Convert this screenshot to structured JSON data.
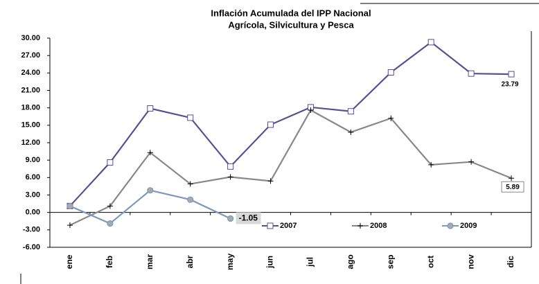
{
  "chart_data": {
    "type": "line",
    "title": "Inflación Acumulada del IPP Nacional",
    "subtitle": "Agrícola, Silvicultura y Pesca",
    "categories": [
      "ene",
      "feb",
      "mar",
      "abr",
      "may",
      "jun",
      "jul",
      "ago",
      "sep",
      "oct",
      "nov",
      "dic"
    ],
    "series": [
      {
        "name": "2007",
        "color": "#5b4d8f",
        "marker": "square",
        "values": [
          1.1,
          8.6,
          17.9,
          16.3,
          7.9,
          15.1,
          18.1,
          17.4,
          24.1,
          29.3,
          23.9,
          23.79
        ],
        "value_labels": [
          null,
          null,
          null,
          null,
          null,
          null,
          null,
          null,
          null,
          null,
          null,
          "23.79"
        ]
      },
      {
        "name": "2008",
        "color": "#888888",
        "marker": "plus",
        "values": [
          -2.2,
          1.1,
          10.3,
          4.9,
          6.1,
          5.4,
          17.6,
          13.8,
          16.2,
          8.2,
          8.7,
          5.89
        ],
        "value_labels": [
          null,
          null,
          null,
          null,
          null,
          null,
          null,
          null,
          null,
          null,
          null,
          "5.89"
        ]
      },
      {
        "name": "2009",
        "color": "#7f96c0",
        "marker": "circle",
        "values": [
          1.1,
          -1.9,
          3.8,
          2.2,
          -1.05,
          null,
          null,
          null,
          null,
          null,
          null,
          null
        ],
        "value_labels": [
          null,
          null,
          null,
          null,
          "-1.05",
          null,
          null,
          null,
          null,
          null,
          null,
          null
        ]
      }
    ],
    "ylim": [
      -6,
      30
    ],
    "yticks": [
      {
        "value": 30,
        "label": "30.00"
      },
      {
        "value": 27,
        "label": "27.00"
      },
      {
        "value": 24,
        "label": "24.00"
      },
      {
        "value": 21,
        "label": "21.00"
      },
      {
        "value": 18,
        "label": "18.00"
      },
      {
        "value": 15,
        "label": "15.00"
      },
      {
        "value": 12,
        "label": "12.00"
      },
      {
        "value": 9,
        "label": "9.00"
      },
      {
        "value": 6,
        "label": "6.00"
      },
      {
        "value": 3,
        "label": "3.00"
      },
      {
        "value": 0,
        "label": "0.00"
      },
      {
        "value": -3,
        "label": "-3.00"
      },
      {
        "value": -6,
        "label": "-6.00"
      }
    ],
    "legend": "bottom",
    "grid": false
  }
}
